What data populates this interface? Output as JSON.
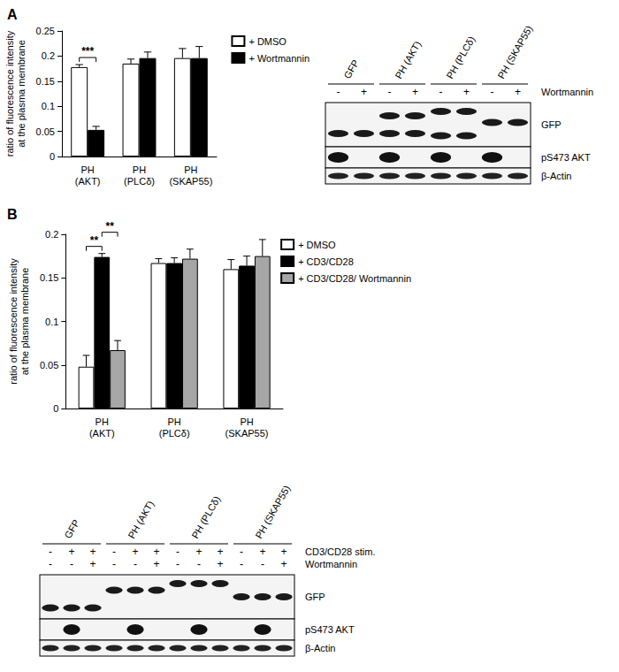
{
  "panel_labels": [
    "A",
    "B"
  ],
  "chart_data": [
    {
      "type": "bar",
      "categories": [
        "PH (AKT)",
        "PH (PLCδ)",
        "PH (SKAP55)"
      ],
      "y_label": "ratio of fluorescence intensity at the plasma membrane",
      "ylim": [
        0,
        0.25
      ],
      "yticks": [
        0,
        0.05,
        0.1,
        0.15,
        0.2,
        0.25
      ],
      "grid": false,
      "legend": "right",
      "series": [
        {
          "name": "+ DMSO",
          "color": "#ffffff",
          "values": [
            0.178,
            0.185,
            0.196
          ],
          "errors": [
            0.005,
            0.009,
            0.019
          ]
        },
        {
          "name": "+ Wortmannin",
          "color": "#000000",
          "values": [
            0.053,
            0.196,
            0.196
          ],
          "errors": [
            0.007,
            0.012,
            0.023
          ]
        }
      ],
      "annotations": [
        {
          "text": "***",
          "category": "PH (AKT)",
          "series": [
            "+ DMSO",
            "+ Wortmannin"
          ]
        }
      ]
    },
    {
      "type": "bar",
      "categories": [
        "PH (AKT)",
        "PH (PLCδ)",
        "PH (SKAP55)"
      ],
      "y_label": "ratio of fluorescence intensity at the plasma membrane",
      "ylim": [
        0,
        0.2
      ],
      "yticks": [
        0,
        0.05,
        0.1,
        0.15,
        0.2
      ],
      "grid": false,
      "legend": "right",
      "series": [
        {
          "name": "+ DMSO",
          "color": "#ffffff",
          "values": [
            0.048,
            0.167,
            0.16
          ],
          "errors": [
            0.013,
            0.005,
            0.011
          ]
        },
        {
          "name": "+ CD3/CD28",
          "color": "#000000",
          "values": [
            0.174,
            0.167,
            0.164
          ],
          "errors": [
            0.004,
            0.006,
            0.011
          ]
        },
        {
          "name": "+ CD3/CD28/ Wortmannin",
          "color": "#a6a6a6",
          "values": [
            0.067,
            0.172,
            0.175
          ],
          "errors": [
            0.011,
            0.011,
            0.019
          ]
        }
      ],
      "annotations": [
        {
          "text": "**",
          "category": "PH (AKT)",
          "series": [
            "+ DMSO",
            "+ CD3/CD28"
          ]
        },
        {
          "text": "**",
          "category": "PH (AKT)",
          "series": [
            "+ CD3/CD28",
            "+ CD3/CD28/ Wortmannin"
          ]
        }
      ]
    }
  ],
  "blots": [
    {
      "lanes": [
        "GFP",
        "PH (AKT)",
        "PH (PLCδ)",
        "PH (SKAP55)"
      ],
      "treatments": [
        {
          "label": "Wortmannin",
          "signs": [
            "-",
            "+",
            "-",
            "+",
            "-",
            "+",
            "-",
            "+"
          ]
        }
      ],
      "rows": [
        "GFP",
        "pS473 AKT",
        "β-Actin"
      ]
    },
    {
      "lanes": [
        "GFP",
        "PH (AKT)",
        "PH (PLCδ)",
        "PH (SKAP55)"
      ],
      "treatments": [
        {
          "label": "CD3/CD28 stim.",
          "signs": [
            "-",
            "+",
            "+",
            "-",
            "+",
            "+",
            "-",
            "+",
            "+",
            "-",
            "+",
            "+"
          ]
        },
        {
          "label": "Wortmannin",
          "signs": [
            "-",
            "-",
            "+",
            "-",
            "-",
            "+",
            "-",
            "-",
            "+",
            "-",
            "-",
            "+"
          ]
        }
      ],
      "rows": [
        "GFP",
        "pS473 AKT",
        "β-Actin"
      ]
    }
  ]
}
